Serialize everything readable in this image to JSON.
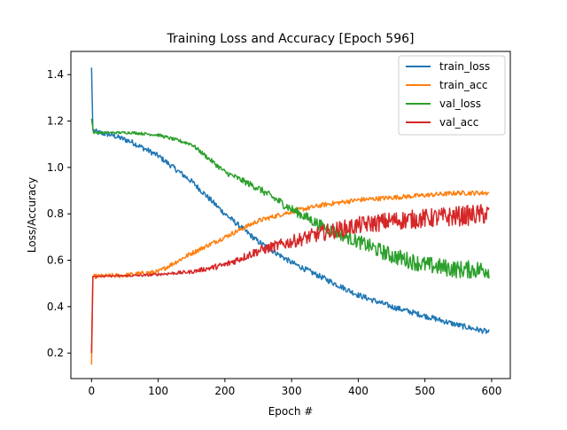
{
  "chart_data": {
    "type": "line",
    "title": "Training Loss and Accuracy [Epoch 596]",
    "xlabel": "Epoch #",
    "ylabel": "Loss/Accuracy",
    "xlim": [
      -31,
      628
    ],
    "ylim": [
      0.09,
      1.5
    ],
    "xticks": [
      0,
      100,
      200,
      300,
      400,
      500,
      600
    ],
    "yticks": [
      0.2,
      0.4,
      0.6,
      0.8,
      1.0,
      1.2,
      1.4
    ],
    "ytick_labels": [
      "0.2",
      "0.4",
      "0.6",
      "0.8",
      "1.0",
      "1.2",
      "1.4"
    ],
    "grid": false,
    "legend_position": "top-right",
    "n_epochs": 597,
    "series": [
      {
        "name": "train_loss",
        "color": "#1f77b4",
        "anchors": [
          [
            0,
            1.43
          ],
          [
            2,
            1.16
          ],
          [
            10,
            1.15
          ],
          [
            30,
            1.14
          ],
          [
            60,
            1.11
          ],
          [
            100,
            1.05
          ],
          [
            150,
            0.94
          ],
          [
            200,
            0.8
          ],
          [
            250,
            0.68
          ],
          [
            300,
            0.59
          ],
          [
            350,
            0.52
          ],
          [
            400,
            0.45
          ],
          [
            450,
            0.4
          ],
          [
            500,
            0.36
          ],
          [
            550,
            0.32
          ],
          [
            596,
            0.29
          ]
        ],
        "noise": 0.012
      },
      {
        "name": "train_acc",
        "color": "#ff7f0e",
        "anchors": [
          [
            0,
            0.15
          ],
          [
            2,
            0.53
          ],
          [
            50,
            0.535
          ],
          [
            100,
            0.55
          ],
          [
            150,
            0.63
          ],
          [
            200,
            0.7
          ],
          [
            250,
            0.77
          ],
          [
            300,
            0.81
          ],
          [
            350,
            0.84
          ],
          [
            400,
            0.86
          ],
          [
            450,
            0.87
          ],
          [
            500,
            0.88
          ],
          [
            550,
            0.89
          ],
          [
            596,
            0.89
          ]
        ],
        "noise": 0.01
      },
      {
        "name": "val_loss",
        "color": "#2ca02c",
        "anchors": [
          [
            0,
            1.21
          ],
          [
            3,
            1.15
          ],
          [
            30,
            1.15
          ],
          [
            60,
            1.15
          ],
          [
            100,
            1.14
          ],
          [
            150,
            1.1
          ],
          [
            200,
            0.98
          ],
          [
            250,
            0.91
          ],
          [
            300,
            0.82
          ],
          [
            350,
            0.74
          ],
          [
            400,
            0.68
          ],
          [
            450,
            0.62
          ],
          [
            500,
            0.58
          ],
          [
            550,
            0.56
          ],
          [
            596,
            0.56
          ]
        ],
        "noise": [
          [
            0,
            0.004
          ],
          [
            150,
            0.008
          ],
          [
            250,
            0.015
          ],
          [
            350,
            0.025
          ],
          [
            450,
            0.035
          ],
          [
            596,
            0.04
          ]
        ]
      },
      {
        "name": "val_acc",
        "color": "#d62728",
        "anchors": [
          [
            0,
            0.2
          ],
          [
            2,
            0.53
          ],
          [
            80,
            0.535
          ],
          [
            150,
            0.55
          ],
          [
            200,
            0.58
          ],
          [
            250,
            0.64
          ],
          [
            300,
            0.68
          ],
          [
            350,
            0.72
          ],
          [
            400,
            0.75
          ],
          [
            450,
            0.77
          ],
          [
            500,
            0.78
          ],
          [
            550,
            0.79
          ],
          [
            596,
            0.8
          ]
        ],
        "noise": [
          [
            0,
            0.002
          ],
          [
            150,
            0.008
          ],
          [
            250,
            0.02
          ],
          [
            350,
            0.035
          ],
          [
            450,
            0.04
          ],
          [
            596,
            0.045
          ]
        ]
      }
    ]
  }
}
